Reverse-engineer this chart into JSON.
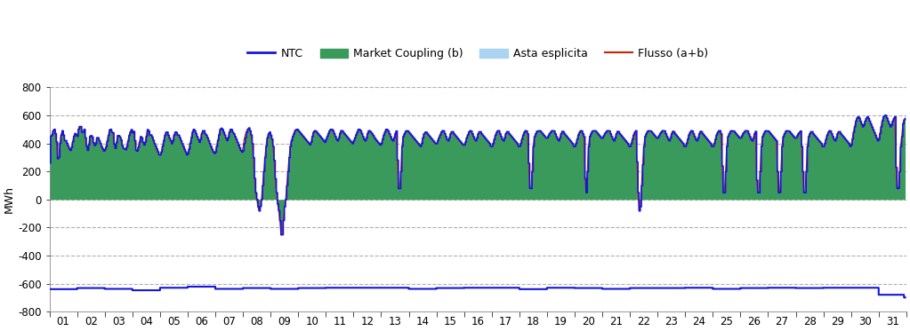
{
  "ylabel": "MWh",
  "ylim": [
    -800,
    800
  ],
  "yticks": [
    -800,
    -600,
    -400,
    -200,
    0,
    200,
    400,
    600,
    800
  ],
  "xtick_labels": [
    "01",
    "02",
    "03",
    "04",
    "05",
    "06",
    "07",
    "08",
    "09",
    "10",
    "11",
    "12",
    "13",
    "14",
    "15",
    "16",
    "17",
    "18",
    "19",
    "20",
    "21",
    "22",
    "23",
    "24",
    "25",
    "26",
    "27",
    "28",
    "29",
    "30",
    "31"
  ],
  "grid_color": "#b0b0b0",
  "bg_color": "#ffffff",
  "market_coupling_color": "#3a9a5c",
  "asta_color": "#aad4f0",
  "flusso_color": "#cc2200",
  "ntc_color": "#1515dd",
  "legend_items": [
    "NTC",
    "Market Coupling (b)",
    "Asta esplicita",
    "Flusso (a+b)"
  ],
  "days": 31,
  "hours_per_day": 24,
  "dashed_grid_lines": [
    800,
    600,
    -800
  ],
  "solid_grid_lines": [
    -600,
    -400,
    -200,
    0,
    200,
    400
  ]
}
